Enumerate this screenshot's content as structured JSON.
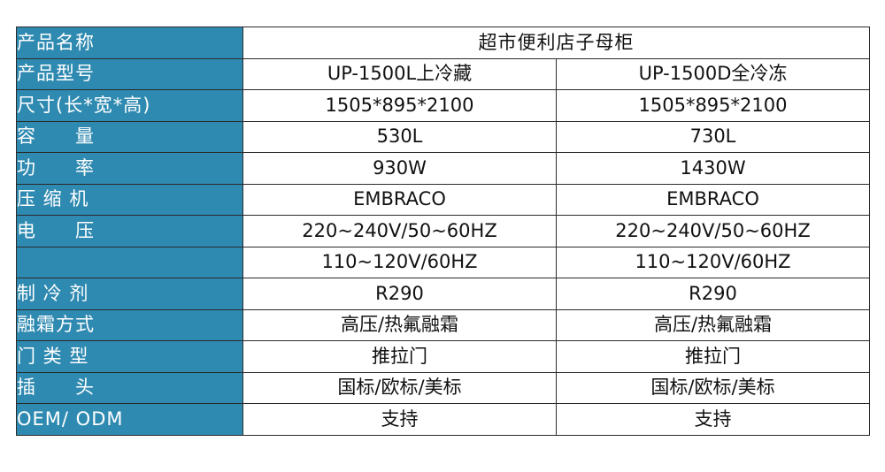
{
  "header": {
    "label": "产品名称",
    "value": "超市便利店子母柜"
  },
  "rows": [
    {
      "label": "产品型号",
      "a": "UP-1500L上冷藏",
      "b": "UP-1500D全冷冻"
    },
    {
      "label": "尺寸(长*宽*高)",
      "a": "1505*895*2100",
      "b": "1505*895*2100"
    },
    {
      "label": "容　　量",
      "a": "530L",
      "b": "730L"
    },
    {
      "label": "功　　率",
      "a": "930W",
      "b": "1430W"
    },
    {
      "label": "压 缩 机",
      "a": "EMBRACO",
      "b": "EMBRACO"
    },
    {
      "label": "电　　压",
      "a": "220~240V/50~60HZ",
      "b": "220~240V/50~60HZ"
    },
    {
      "label": "",
      "a": "110~120V/60HZ",
      "b": "110~120V/60HZ"
    },
    {
      "label": "制 冷 剂",
      "a": "R290",
      "b": "R290"
    },
    {
      "label": "融霜方式",
      "a": "高压/热氟融霜",
      "b": "高压/热氟融霜"
    },
    {
      "label": "门 类 型",
      "a": "推拉门",
      "b": "推拉门"
    },
    {
      "label": "插　　头",
      "a": "国标/欧标/美标",
      "b": "国标/欧标/美标"
    },
    {
      "label": "OEM/ ODM",
      "a": "支持",
      "b": "支持"
    }
  ]
}
